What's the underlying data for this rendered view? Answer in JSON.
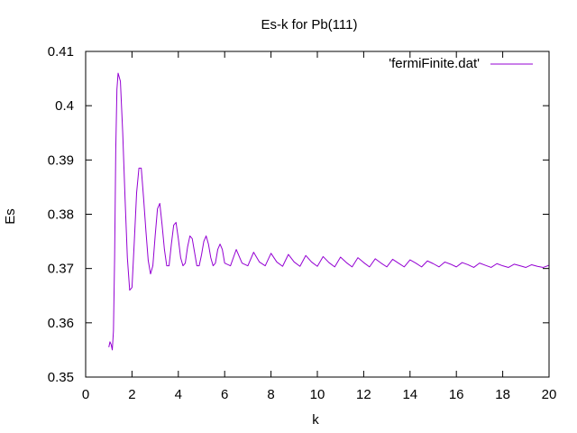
{
  "chart_data": {
    "type": "line",
    "title": "Es-k for Pb(111)",
    "xlabel": "k",
    "ylabel": "Es",
    "xlim": [
      0,
      20
    ],
    "ylim": [
      0.35,
      0.41
    ],
    "xticks": [
      0,
      2,
      4,
      6,
      8,
      10,
      12,
      14,
      16,
      18,
      20
    ],
    "xtick_labels": [
      "0",
      "2",
      "4",
      "6",
      "8",
      "10",
      "12",
      "14",
      "16",
      "18",
      "20"
    ],
    "yticks": [
      0.35,
      0.36,
      0.37,
      0.38,
      0.39,
      0.4,
      0.41
    ],
    "ytick_labels": [
      "0.35",
      "0.36",
      "0.37",
      "0.38",
      "0.39",
      "0.4",
      "0.41"
    ],
    "grid": false,
    "legend_position": "top-right",
    "series": [
      {
        "name": "'fermiFinite.dat'",
        "color": "#9400d3",
        "x": [
          1.0,
          1.05,
          1.1,
          1.15,
          1.2,
          1.25,
          1.3,
          1.35,
          1.4,
          1.5,
          1.6,
          1.7,
          1.8,
          1.9,
          2.0,
          2.1,
          2.2,
          2.3,
          2.4,
          2.5,
          2.6,
          2.7,
          2.8,
          2.9,
          3.0,
          3.1,
          3.2,
          3.3,
          3.4,
          3.5,
          3.6,
          3.7,
          3.8,
          3.9,
          4.0,
          4.1,
          4.2,
          4.3,
          4.4,
          4.5,
          4.6,
          4.7,
          4.8,
          4.9,
          5.0,
          5.1,
          5.2,
          5.3,
          5.4,
          5.5,
          5.6,
          5.7,
          5.8,
          5.9,
          6.0,
          6.25,
          6.5,
          6.75,
          7.0,
          7.25,
          7.5,
          7.75,
          8.0,
          8.25,
          8.5,
          8.75,
          9.0,
          9.25,
          9.5,
          9.75,
          10.0,
          10.25,
          10.5,
          10.75,
          11.0,
          11.25,
          11.5,
          11.75,
          12.0,
          12.25,
          12.5,
          12.75,
          13.0,
          13.25,
          13.5,
          13.75,
          14.0,
          14.25,
          14.5,
          14.75,
          15.0,
          15.25,
          15.5,
          15.75,
          16.0,
          16.25,
          16.5,
          16.75,
          17.0,
          17.25,
          17.5,
          17.75,
          18.0,
          18.25,
          18.5,
          18.75,
          19.0,
          19.25,
          19.5,
          19.75,
          20.0
        ],
        "y": [
          0.3555,
          0.3565,
          0.356,
          0.355,
          0.3585,
          0.372,
          0.392,
          0.403,
          0.406,
          0.4045,
          0.395,
          0.383,
          0.372,
          0.366,
          0.3665,
          0.375,
          0.384,
          0.3885,
          0.3885,
          0.383,
          0.377,
          0.3715,
          0.369,
          0.3705,
          0.376,
          0.381,
          0.382,
          0.378,
          0.3735,
          0.3705,
          0.3705,
          0.3745,
          0.378,
          0.3785,
          0.3755,
          0.372,
          0.3705,
          0.371,
          0.374,
          0.376,
          0.3755,
          0.373,
          0.3705,
          0.3705,
          0.3725,
          0.375,
          0.376,
          0.3745,
          0.372,
          0.3705,
          0.371,
          0.3735,
          0.3745,
          0.3735,
          0.371,
          0.3705,
          0.3735,
          0.371,
          0.3705,
          0.373,
          0.3712,
          0.3705,
          0.3728,
          0.3712,
          0.3704,
          0.3726,
          0.3712,
          0.3704,
          0.3724,
          0.3712,
          0.3704,
          0.3722,
          0.3711,
          0.3703,
          0.3721,
          0.3711,
          0.3703,
          0.372,
          0.3711,
          0.3703,
          0.3718,
          0.371,
          0.3703,
          0.3717,
          0.371,
          0.3703,
          0.3716,
          0.371,
          0.3703,
          0.3714,
          0.3709,
          0.3703,
          0.3712,
          0.3708,
          0.3703,
          0.3711,
          0.3707,
          0.3702,
          0.371,
          0.3706,
          0.3702,
          0.3709,
          0.3705,
          0.3702,
          0.3708,
          0.3705,
          0.3702,
          0.3707,
          0.3704,
          0.3702,
          0.3706
        ]
      }
    ]
  }
}
